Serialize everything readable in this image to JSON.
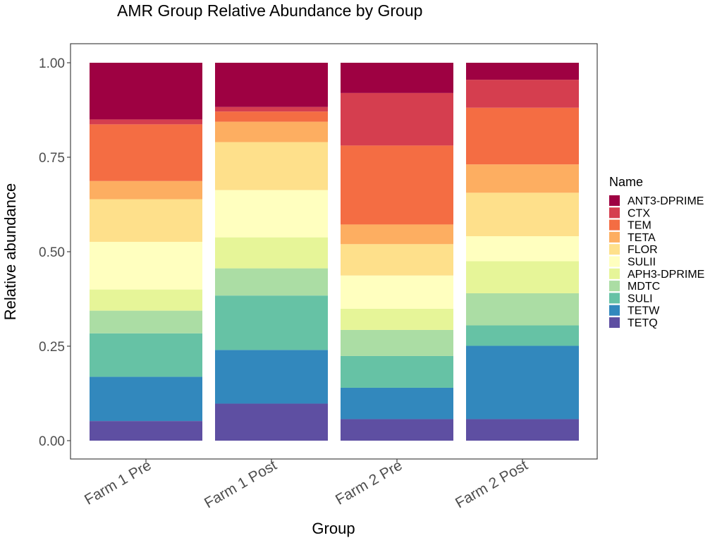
{
  "chart_data": {
    "type": "bar",
    "stacked": true,
    "normalized": true,
    "title": "AMR Group Relative Abundance by Group",
    "xlabel": "Group",
    "ylabel": "Relative abundance",
    "ylim": [
      0,
      1
    ],
    "yticks": [
      "0.00",
      "0.25",
      "0.50",
      "0.75",
      "1.00"
    ],
    "tick_values": [
      0,
      0.25,
      0.5,
      0.75,
      1.0
    ],
    "categories": [
      "Farm 1 Pre",
      "Farm 1 Post",
      "Farm 2 Pre",
      "Farm 2 Post"
    ],
    "legend_title": "Name",
    "legend_position": "right",
    "grid": false,
    "series": [
      {
        "name": "ANT3-DPRIME",
        "color": "#9E0142",
        "values": [
          0.15,
          0.117,
          0.08,
          0.045
        ]
      },
      {
        "name": "CTX",
        "color": "#D53E4F",
        "values": [
          0.013,
          0.012,
          0.139,
          0.074
        ]
      },
      {
        "name": "TEM",
        "color": "#F46D43",
        "values": [
          0.15,
          0.027,
          0.209,
          0.15
        ]
      },
      {
        "name": "TETA",
        "color": "#FDAE61",
        "values": [
          0.048,
          0.054,
          0.052,
          0.075
        ]
      },
      {
        "name": "FLOR",
        "color": "#FEE08B",
        "values": [
          0.113,
          0.127,
          0.083,
          0.115
        ]
      },
      {
        "name": "SULII",
        "color": "#FFFFBF",
        "values": [
          0.126,
          0.125,
          0.088,
          0.066
        ]
      },
      {
        "name": "APH3-DPRIME",
        "color": "#E6F598",
        "values": [
          0.056,
          0.082,
          0.056,
          0.085
        ]
      },
      {
        "name": "MDTC",
        "color": "#ABDDA4",
        "values": [
          0.06,
          0.072,
          0.069,
          0.085
        ]
      },
      {
        "name": "SULI",
        "color": "#66C2A5",
        "values": [
          0.115,
          0.144,
          0.084,
          0.054
        ]
      },
      {
        "name": "TETW",
        "color": "#3288BD",
        "values": [
          0.117,
          0.142,
          0.083,
          0.194
        ]
      },
      {
        "name": "TETQ",
        "color": "#5E4FA2",
        "values": [
          0.052,
          0.098,
          0.057,
          0.057
        ]
      }
    ]
  }
}
